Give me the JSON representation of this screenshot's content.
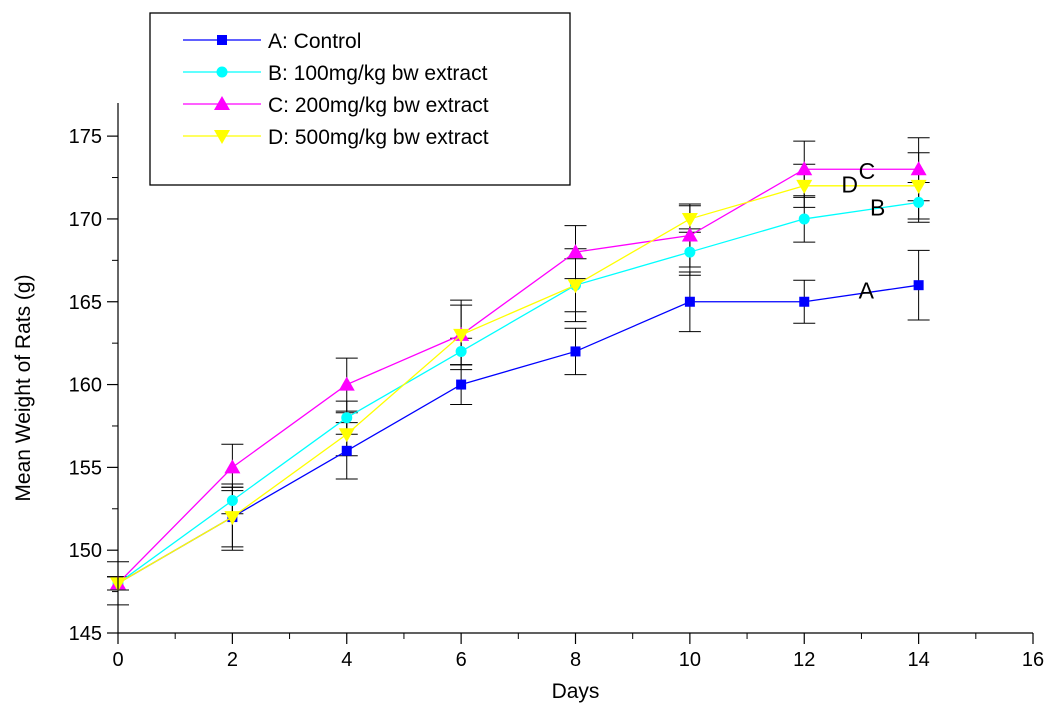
{
  "chart_data": {
    "type": "line",
    "xlabel": "Days",
    "ylabel": "Mean Weight of Rats (g)",
    "xlim": [
      0,
      16
    ],
    "ylim": [
      145,
      177
    ],
    "x_ticks": [
      0,
      2,
      4,
      6,
      8,
      10,
      12,
      14,
      16
    ],
    "y_ticks": [
      145,
      150,
      155,
      160,
      165,
      170,
      175
    ],
    "grid": false,
    "legend_position": "top-left",
    "x": [
      0,
      2,
      4,
      6,
      8,
      10,
      12,
      14
    ],
    "series": [
      {
        "name": "A: Control",
        "end_label": "A",
        "color": "#0000ff",
        "marker": "square",
        "values": [
          148,
          152,
          156,
          160,
          162,
          165,
          165,
          166
        ],
        "errors": [
          1.3,
          2.0,
          1.7,
          1.2,
          1.4,
          1.8,
          1.3,
          2.1
        ]
      },
      {
        "name": "B: 100mg/kg bw extract",
        "end_label": "B",
        "color": "#00ffff",
        "marker": "circle",
        "values": [
          148,
          153,
          158,
          162,
          166,
          168,
          170,
          171
        ],
        "errors": [
          0.4,
          0.8,
          1.0,
          0.8,
          1.6,
          1.4,
          1.4,
          1.2
        ]
      },
      {
        "name": "C: 200mg/kg bw extract",
        "end_label": "C",
        "color": "#ff00ff",
        "marker": "triangle-up",
        "values": [
          148,
          155,
          160,
          163,
          168,
          169,
          173,
          173
        ],
        "errors": [
          0.4,
          1.4,
          1.6,
          2.1,
          1.6,
          1.9,
          1.7,
          1.9
        ]
      },
      {
        "name": "D: 500mg/kg bw extract",
        "end_label": "D",
        "color": "#ffff00",
        "marker": "triangle-down",
        "values": [
          148,
          152,
          157,
          163,
          166,
          170,
          172,
          172
        ],
        "errors": [
          0.4,
          1.8,
          1.3,
          1.8,
          2.2,
          0.8,
          1.3,
          2.0
        ]
      }
    ]
  }
}
